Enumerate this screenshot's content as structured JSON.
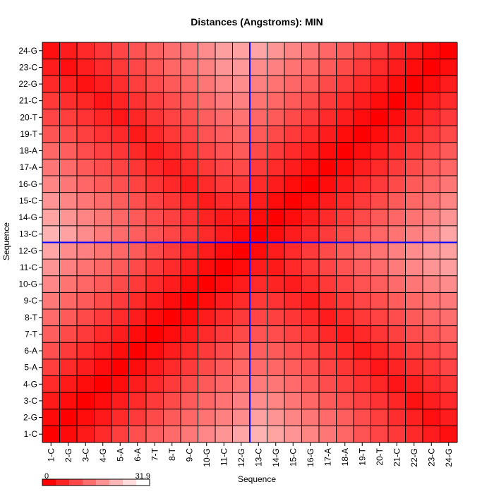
{
  "chart_data": {
    "type": "heatmap",
    "title": "Distances (Angstroms):  MIN",
    "xlabel": "Sequence",
    "ylabel": "Sequence",
    "labels": [
      "1-C",
      "2-G",
      "3-C",
      "4-G",
      "5-A",
      "6-A",
      "7-T",
      "8-T",
      "9-C",
      "10-G",
      "11-C",
      "12-G",
      "13-C",
      "14-G",
      "15-C",
      "16-G",
      "17-A",
      "18-A",
      "19-T",
      "20-T",
      "21-C",
      "22-G",
      "23-C",
      "24-G"
    ],
    "value_range": [
      0,
      31.9
    ],
    "colors": {
      "low": "#ff0000",
      "high": "#ffffff",
      "divider": "#0000ff",
      "grid": "#000000"
    },
    "divider_after_index": 12,
    "legend": {
      "min_label": "0",
      "max_label": "31.9",
      "placement": "bottom-left",
      "steps": 8
    },
    "note": "values (Angstroms) estimated from cell color"
  }
}
